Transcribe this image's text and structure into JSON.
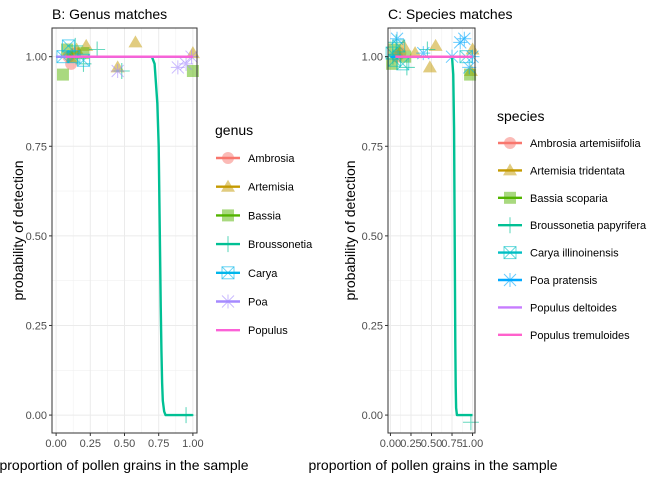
{
  "chart_data": [
    {
      "type": "scatter",
      "panel": "B",
      "title": "B: Genus matches",
      "xlabel": "proportion of pollen grains in the sample",
      "ylabel": "probability of detection",
      "xlim": [
        -0.03,
        1.03
      ],
      "ylim": [
        -0.05,
        1.08
      ],
      "xticks": [
        0,
        0.25,
        0.5,
        0.75,
        1
      ],
      "xtick_labels": [
        "0.00",
        "0.25",
        "0.50",
        "0.75",
        "1.00"
      ],
      "yticks": [
        0,
        0.25,
        0.5,
        0.75,
        1
      ],
      "ytick_labels": [
        "0.00",
        "0.25",
        "0.50",
        "0.75",
        "1.00"
      ],
      "grid": true,
      "legend_title": "genus",
      "legend_position": "right",
      "series": [
        {
          "name": "Ambrosia",
          "color": "#F8766D",
          "shape": "circle",
          "points": [
            [
              0.11,
              0.98
            ],
            [
              0.09,
              1.0
            ],
            [
              0.14,
              1.01
            ]
          ],
          "curve": [
            [
              0,
              1
            ],
            [
              1,
              1
            ]
          ]
        },
        {
          "name": "Artemisia",
          "color": "#C49A00",
          "shape": "triangle",
          "points": [
            [
              0.22,
              1.03
            ],
            [
              0.45,
              0.97
            ],
            [
              0.58,
              1.04
            ],
            [
              1.0,
              1.01
            ],
            [
              0.15,
              1.02
            ]
          ],
          "curve": [
            [
              0,
              1
            ],
            [
              1,
              1
            ]
          ]
        },
        {
          "name": "Bassia",
          "color": "#53B400",
          "shape": "square",
          "points": [
            [
              0.05,
              0.95
            ],
            [
              0.08,
              1.02
            ],
            [
              0.12,
              1.0
            ],
            [
              1.0,
              0.96
            ],
            [
              0.2,
              1.01
            ]
          ],
          "curve": [
            [
              0,
              1
            ],
            [
              1,
              1
            ]
          ]
        },
        {
          "name": "Broussonetia",
          "color": "#00C094",
          "shape": "plus",
          "points": [
            [
              0.3,
              1.02
            ],
            [
              0.2,
              0.98
            ],
            [
              0.48,
              0.96
            ],
            [
              0.95,
              0.0
            ],
            [
              0.14,
              1.03
            ]
          ],
          "curve": [
            [
              0,
              1
            ],
            [
              0.7,
              1.0
            ],
            [
              0.72,
              0.98
            ],
            [
              0.74,
              0.87
            ],
            [
              0.75,
              0.75
            ],
            [
              0.755,
              0.6
            ],
            [
              0.76,
              0.45
            ],
            [
              0.765,
              0.3
            ],
            [
              0.77,
              0.18
            ],
            [
              0.775,
              0.09
            ],
            [
              0.78,
              0.04
            ],
            [
              0.79,
              0.01
            ],
            [
              0.8,
              0.0
            ],
            [
              1.0,
              0.0
            ]
          ]
        },
        {
          "name": "Carya",
          "color": "#00B6EB",
          "shape": "square-x",
          "points": [
            [
              0.05,
              1.0
            ],
            [
              0.09,
              1.03
            ],
            [
              0.13,
              1.0
            ],
            [
              0.2,
              0.99
            ]
          ],
          "curve": [
            [
              0,
              1
            ],
            [
              1,
              1
            ]
          ]
        },
        {
          "name": "Poa",
          "color": "#A58AFF",
          "shape": "asterisk",
          "points": [
            [
              0.45,
              0.96
            ],
            [
              0.89,
              0.97
            ],
            [
              0.95,
              0.98
            ],
            [
              0.99,
              1.0
            ]
          ],
          "curve": [
            [
              0,
              1
            ],
            [
              1,
              1
            ]
          ]
        },
        {
          "name": "Populus",
          "color": "#FB61D7",
          "shape": "line",
          "points": [],
          "curve": [
            [
              0.07,
              1.0
            ],
            [
              1.0,
              1.0
            ]
          ]
        }
      ]
    },
    {
      "type": "scatter",
      "panel": "C",
      "title": "C: Species matches",
      "xlabel": "proportion of pollen grains  in the sample",
      "ylabel": "probability of detection",
      "xlim": [
        -0.03,
        1.03
      ],
      "ylim": [
        -0.05,
        1.08
      ],
      "xticks": [
        0,
        0.25,
        0.5,
        0.75,
        1
      ],
      "xtick_labels": [
        "0.00",
        "0.25",
        "0.50",
        "0.75",
        "1.00"
      ],
      "yticks": [
        0,
        0.25,
        0.5,
        0.75,
        1
      ],
      "ytick_labels": [
        "0.00",
        "0.25",
        "0.50",
        "0.75",
        "1.00"
      ],
      "grid": true,
      "legend_title": "species",
      "legend_position": "right",
      "series": [
        {
          "name": "Ambrosia artemisiifolia",
          "color": "#F8766D",
          "shape": "circle",
          "points": [
            [
              0.08,
              1.0
            ],
            [
              0.12,
              1.01
            ]
          ],
          "curve": [
            [
              0,
              1
            ],
            [
              1,
              1
            ]
          ]
        },
        {
          "name": "Artemisia tridentata",
          "color": "#C49A00",
          "shape": "triangle",
          "points": [
            [
              0.16,
              1.03
            ],
            [
              0.3,
              1.01
            ],
            [
              0.55,
              1.03
            ],
            [
              0.48,
              0.97
            ],
            [
              1.0,
              1.02
            ],
            [
              0.98,
              0.96
            ]
          ],
          "curve": [
            [
              0,
              1
            ],
            [
              1,
              1
            ]
          ]
        },
        {
          "name": "Bassia scoparia",
          "color": "#53B400",
          "shape": "square",
          "points": [
            [
              0.05,
              1.02
            ],
            [
              0.02,
              0.98
            ],
            [
              0.97,
              0.95
            ],
            [
              0.18,
              1.0
            ]
          ],
          "curve": [
            [
              0,
              1
            ],
            [
              1,
              1
            ]
          ]
        },
        {
          "name": "Broussonetia papyrifera",
          "color": "#00C094",
          "shape": "plus",
          "points": [
            [
              0.07,
              1.04
            ],
            [
              0.2,
              0.97
            ],
            [
              0.45,
              1.02
            ],
            [
              0.98,
              -0.02
            ],
            [
              0.03,
              1.0
            ]
          ],
          "curve": [
            [
              0,
              1
            ],
            [
              0.75,
              1.0
            ],
            [
              0.765,
              0.95
            ],
            [
              0.775,
              0.8
            ],
            [
              0.78,
              0.6
            ],
            [
              0.785,
              0.4
            ],
            [
              0.79,
              0.2
            ],
            [
              0.795,
              0.08
            ],
            [
              0.8,
              0.02
            ],
            [
              0.81,
              0.0
            ],
            [
              1.0,
              0.0
            ]
          ]
        },
        {
          "name": "Carya illinoinensis",
          "color": "#00BFC4",
          "shape": "square-x",
          "points": [
            [
              0.02,
              1.01
            ],
            [
              0.05,
              0.99
            ],
            [
              0.1,
              1.03
            ],
            [
              0.15,
              0.98
            ],
            [
              0.92,
              1.0
            ]
          ],
          "curve": [
            [
              0,
              1
            ],
            [
              1,
              1
            ]
          ]
        },
        {
          "name": "Poa pratensis",
          "color": "#00A9FF",
          "shape": "asterisk",
          "points": [
            [
              0.08,
              1.05
            ],
            [
              0.4,
              1.01
            ],
            [
              0.85,
              1.04
            ],
            [
              0.9,
              1.05
            ],
            [
              0.96,
              0.97
            ],
            [
              1.0,
              1.0
            ],
            [
              0.75,
              1.0
            ]
          ],
          "curve": [
            [
              0,
              1
            ],
            [
              1,
              1
            ]
          ]
        },
        {
          "name": "Populus deltoides",
          "color": "#C77CFF",
          "shape": "line",
          "points": [],
          "curve": [
            [
              0.06,
              1.0
            ],
            [
              1.0,
              1.0
            ]
          ]
        },
        {
          "name": "Populus tremuloides",
          "color": "#FF61CC",
          "shape": "line",
          "points": [],
          "curve": [
            [
              0.06,
              1.0
            ],
            [
              1.0,
              1.0
            ]
          ]
        }
      ]
    }
  ]
}
